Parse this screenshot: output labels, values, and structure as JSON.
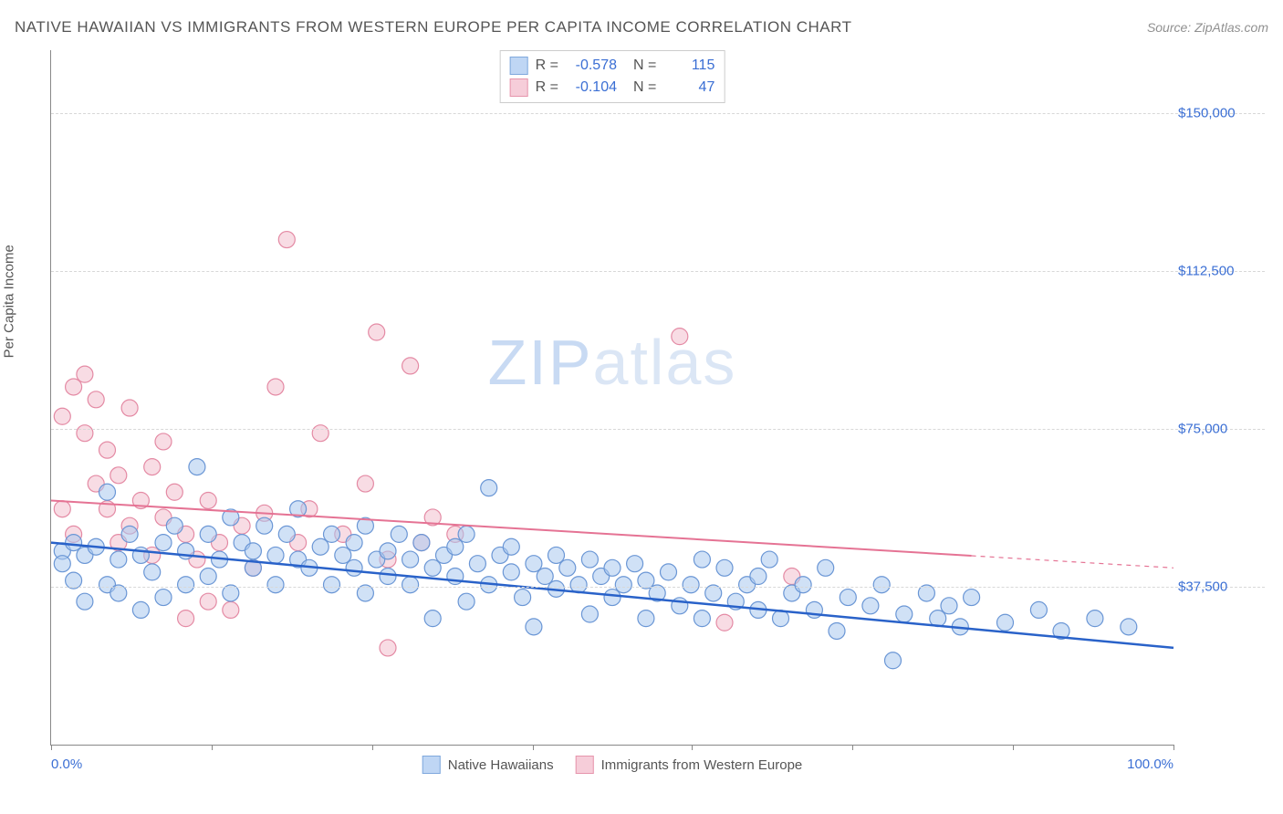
{
  "header": {
    "title": "NATIVE HAWAIIAN VS IMMIGRANTS FROM WESTERN EUROPE PER CAPITA INCOME CORRELATION CHART",
    "source": "Source: ZipAtlas.com"
  },
  "chart": {
    "type": "scatter",
    "y_axis_label": "Per Capita Income",
    "watermark_part1": "ZIP",
    "watermark_part2": "atlas",
    "background_color": "#ffffff",
    "grid_color": "#d8d8d8",
    "axis_color": "#888888",
    "tick_label_color": "#3b6fd4",
    "xlim": [
      0,
      100
    ],
    "ylim": [
      0,
      165000
    ],
    "y_ticks": [
      {
        "value": 37500,
        "label": "$37,500"
      },
      {
        "value": 75000,
        "label": "$75,000"
      },
      {
        "value": 112500,
        "label": "$112,500"
      },
      {
        "value": 150000,
        "label": "$150,000"
      }
    ],
    "x_ticks": [
      {
        "value": 0,
        "label": "0.0%"
      },
      {
        "value": 14.3,
        "label": ""
      },
      {
        "value": 28.6,
        "label": ""
      },
      {
        "value": 42.9,
        "label": ""
      },
      {
        "value": 57.1,
        "label": ""
      },
      {
        "value": 71.4,
        "label": ""
      },
      {
        "value": 85.7,
        "label": ""
      },
      {
        "value": 100,
        "label": "100.0%"
      }
    ],
    "correlation_box": {
      "r_label": "R =",
      "n_label": "N =",
      "rows": [
        {
          "color_fill": "#bfd6f4",
          "color_border": "#7fa8dd",
          "r": "-0.578",
          "n": "115"
        },
        {
          "color_fill": "#f6cdd9",
          "color_border": "#e695ac",
          "r": "-0.104",
          "n": "47"
        }
      ]
    },
    "legend": [
      {
        "label": "Native Hawaiians",
        "fill": "#bfd6f4",
        "border": "#7fa8dd"
      },
      {
        "label": "Immigrants from Western Europe",
        "fill": "#f6cdd9",
        "border": "#e695ac"
      }
    ],
    "marker_radius": 9,
    "marker_fill_opacity": 0.55,
    "series": {
      "blue": {
        "fill": "#a9c8ee",
        "stroke": "#6a96d5",
        "points": [
          [
            1,
            46000
          ],
          [
            1,
            43000
          ],
          [
            2,
            48000
          ],
          [
            2,
            39000
          ],
          [
            3,
            45000
          ],
          [
            3,
            34000
          ],
          [
            4,
            47000
          ],
          [
            5,
            60000
          ],
          [
            5,
            38000
          ],
          [
            6,
            44000
          ],
          [
            6,
            36000
          ],
          [
            7,
            50000
          ],
          [
            8,
            45000
          ],
          [
            8,
            32000
          ],
          [
            9,
            41000
          ],
          [
            10,
            48000
          ],
          [
            10,
            35000
          ],
          [
            11,
            52000
          ],
          [
            12,
            46000
          ],
          [
            12,
            38000
          ],
          [
            13,
            66000
          ],
          [
            14,
            50000
          ],
          [
            14,
            40000
          ],
          [
            15,
            44000
          ],
          [
            16,
            54000
          ],
          [
            16,
            36000
          ],
          [
            17,
            48000
          ],
          [
            18,
            42000
          ],
          [
            18,
            46000
          ],
          [
            19,
            52000
          ],
          [
            20,
            45000
          ],
          [
            20,
            38000
          ],
          [
            21,
            50000
          ],
          [
            22,
            44000
          ],
          [
            22,
            56000
          ],
          [
            23,
            42000
          ],
          [
            24,
            47000
          ],
          [
            25,
            38000
          ],
          [
            25,
            50000
          ],
          [
            26,
            45000
          ],
          [
            27,
            42000
          ],
          [
            27,
            48000
          ],
          [
            28,
            36000
          ],
          [
            28,
            52000
          ],
          [
            29,
            44000
          ],
          [
            30,
            40000
          ],
          [
            30,
            46000
          ],
          [
            31,
            50000
          ],
          [
            32,
            38000
          ],
          [
            32,
            44000
          ],
          [
            33,
            48000
          ],
          [
            34,
            42000
          ],
          [
            34,
            30000
          ],
          [
            35,
            45000
          ],
          [
            36,
            40000
          ],
          [
            36,
            47000
          ],
          [
            37,
            50000
          ],
          [
            37,
            34000
          ],
          [
            38,
            43000
          ],
          [
            39,
            61000
          ],
          [
            39,
            38000
          ],
          [
            40,
            45000
          ],
          [
            41,
            41000
          ],
          [
            41,
            47000
          ],
          [
            42,
            35000
          ],
          [
            43,
            43000
          ],
          [
            43,
            28000
          ],
          [
            44,
            40000
          ],
          [
            45,
            45000
          ],
          [
            45,
            37000
          ],
          [
            46,
            42000
          ],
          [
            47,
            38000
          ],
          [
            48,
            44000
          ],
          [
            48,
            31000
          ],
          [
            49,
            40000
          ],
          [
            50,
            42000
          ],
          [
            50,
            35000
          ],
          [
            51,
            38000
          ],
          [
            52,
            43000
          ],
          [
            53,
            30000
          ],
          [
            53,
            39000
          ],
          [
            54,
            36000
          ],
          [
            55,
            41000
          ],
          [
            56,
            33000
          ],
          [
            57,
            38000
          ],
          [
            58,
            44000
          ],
          [
            58,
            30000
          ],
          [
            59,
            36000
          ],
          [
            60,
            42000
          ],
          [
            61,
            34000
          ],
          [
            62,
            38000
          ],
          [
            63,
            32000
          ],
          [
            63,
            40000
          ],
          [
            64,
            44000
          ],
          [
            65,
            30000
          ],
          [
            66,
            36000
          ],
          [
            67,
            38000
          ],
          [
            68,
            32000
          ],
          [
            69,
            42000
          ],
          [
            70,
            27000
          ],
          [
            71,
            35000
          ],
          [
            73,
            33000
          ],
          [
            74,
            38000
          ],
          [
            75,
            20000
          ],
          [
            76,
            31000
          ],
          [
            78,
            36000
          ],
          [
            79,
            30000
          ],
          [
            80,
            33000
          ],
          [
            81,
            28000
          ],
          [
            82,
            35000
          ],
          [
            85,
            29000
          ],
          [
            88,
            32000
          ],
          [
            90,
            27000
          ],
          [
            93,
            30000
          ],
          [
            96,
            28000
          ]
        ],
        "trend": {
          "color": "#2962c9",
          "width": 2.5,
          "y_at_x0": 48000,
          "y_at_x100": 23000,
          "x_end": 100,
          "dash_after": 100
        }
      },
      "pink": {
        "fill": "#f3bfcd",
        "stroke": "#e48aa4",
        "points": [
          [
            1,
            56000
          ],
          [
            1,
            78000
          ],
          [
            2,
            85000
          ],
          [
            2,
            50000
          ],
          [
            3,
            74000
          ],
          [
            3,
            88000
          ],
          [
            4,
            62000
          ],
          [
            4,
            82000
          ],
          [
            5,
            56000
          ],
          [
            5,
            70000
          ],
          [
            6,
            48000
          ],
          [
            6,
            64000
          ],
          [
            7,
            80000
          ],
          [
            7,
            52000
          ],
          [
            8,
            58000
          ],
          [
            9,
            66000
          ],
          [
            9,
            45000
          ],
          [
            10,
            54000
          ],
          [
            10,
            72000
          ],
          [
            11,
            60000
          ],
          [
            12,
            50000
          ],
          [
            12,
            30000
          ],
          [
            13,
            44000
          ],
          [
            14,
            58000
          ],
          [
            14,
            34000
          ],
          [
            15,
            48000
          ],
          [
            16,
            32000
          ],
          [
            17,
            52000
          ],
          [
            18,
            42000
          ],
          [
            19,
            55000
          ],
          [
            20,
            85000
          ],
          [
            21,
            120000
          ],
          [
            22,
            48000
          ],
          [
            23,
            56000
          ],
          [
            24,
            74000
          ],
          [
            26,
            50000
          ],
          [
            28,
            62000
          ],
          [
            29,
            98000
          ],
          [
            30,
            44000
          ],
          [
            30,
            23000
          ],
          [
            32,
            90000
          ],
          [
            33,
            48000
          ],
          [
            34,
            54000
          ],
          [
            36,
            50000
          ],
          [
            56,
            97000
          ],
          [
            60,
            29000
          ],
          [
            66,
            40000
          ]
        ],
        "trend": {
          "color": "#e57394",
          "width": 2,
          "y_at_x0": 58000,
          "y_at_x100": 42000,
          "x_end": 82,
          "dash_after": 82
        }
      }
    }
  }
}
